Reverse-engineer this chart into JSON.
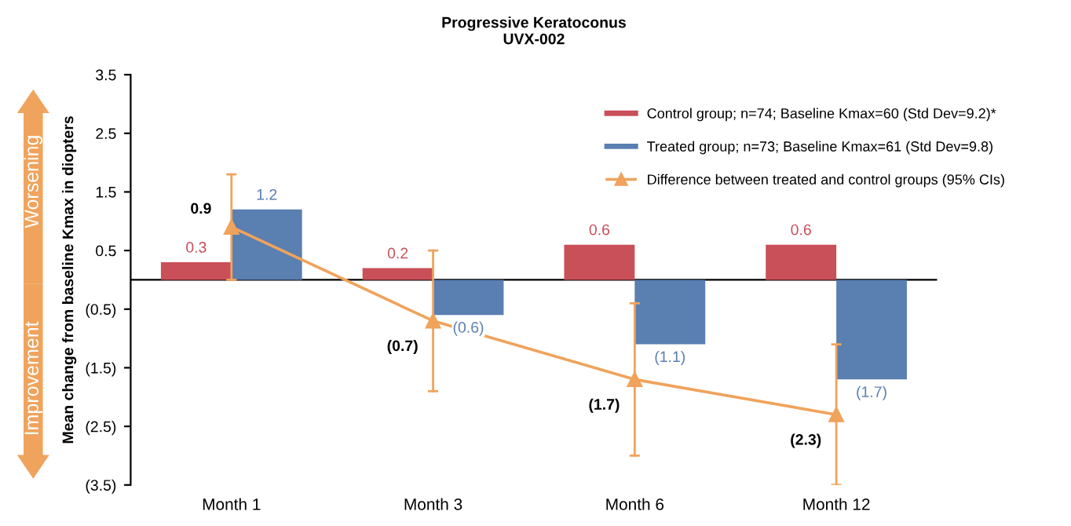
{
  "chart_data": {
    "type": "bar",
    "title": "Progressive Keratoconus\nUVX-002",
    "ylabel": "Mean change from baseline Kmax in diopters",
    "categories": [
      "Month 1",
      "Month 3",
      "Month 6",
      "Month 12"
    ],
    "series": [
      {
        "name": "Control group; n=74; Baseline Kmax=60 (Std Dev=9.2)*",
        "color": "#c94f59",
        "values": [
          0.3,
          0.2,
          0.6,
          0.6
        ],
        "value_labels": [
          "0.3",
          "0.2",
          "0.6",
          "0.6"
        ]
      },
      {
        "name": "Treated group; n=73; Baseline Kmax=61 (Std Dev=9.8)",
        "color": "#5a7fb1",
        "values": [
          1.2,
          -0.6,
          -1.1,
          -1.7
        ],
        "value_labels": [
          "1.2",
          "(0.6)",
          "(1.1)",
          "(1.7)"
        ]
      },
      {
        "name": "Difference between treated and control groups (95% CIs)",
        "type": "line",
        "color": "#f0a35c",
        "marker": "triangle",
        "values": [
          0.9,
          -0.7,
          -1.7,
          -2.3
        ],
        "value_labels": [
          "0.9",
          "(0.7)",
          "(1.7)",
          "(2.3)"
        ],
        "errors": [
          [
            0.0,
            1.8
          ],
          [
            -1.9,
            0.5
          ],
          [
            -3.0,
            -0.4
          ],
          [
            -3.5,
            -1.1
          ]
        ]
      }
    ],
    "ylim": [
      -3.5,
      3.5
    ],
    "yticks": [
      {
        "value": 3.5,
        "label": "3.5"
      },
      {
        "value": 2.5,
        "label": "2.5"
      },
      {
        "value": 1.5,
        "label": "1.5"
      },
      {
        "value": 0.5,
        "label": "0.5"
      },
      {
        "value": -0.5,
        "label": "(0.5)"
      },
      {
        "value": -1.5,
        "label": "(1.5)"
      },
      {
        "value": -2.5,
        "label": "(2.5)"
      },
      {
        "value": -3.5,
        "label": "(3.5)"
      }
    ],
    "annotations": [
      "Worsening",
      "Improvement"
    ],
    "legend": "top right",
    "grid": false
  }
}
